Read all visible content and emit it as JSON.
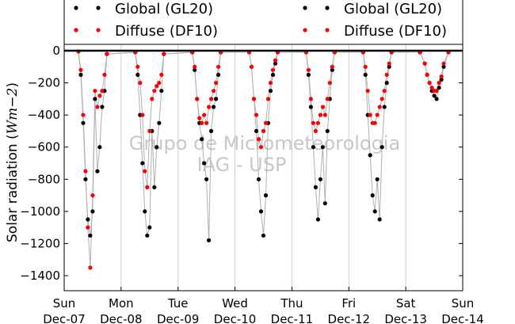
{
  "chart_data": {
    "type": "scatter",
    "ylabel": "Solar radiation (Wm-2)",
    "ylabel_parts": {
      "prefix": "Solar radiation (",
      "unit": "Wm−2",
      "suffix": ")"
    },
    "x_range": [
      "2014-12-07",
      "2014-12-14"
    ],
    "ylim": [
      -1500,
      60
    ],
    "yticks": [
      0,
      -200,
      -400,
      -600,
      -800,
      -1000,
      -1200,
      -1400
    ],
    "xticks": [
      {
        "date": "2014-12-07",
        "day": "Sun",
        "label": "Dec-07"
      },
      {
        "date": "2014-12-08",
        "day": "Mon",
        "label": "Dec-08"
      },
      {
        "date": "2014-12-09",
        "day": "Tue",
        "label": "Dec-09"
      },
      {
        "date": "2014-12-10",
        "day": "Wed",
        "label": "Dec-10"
      },
      {
        "date": "2014-12-11",
        "day": "Thu",
        "label": "Dec-11"
      },
      {
        "date": "2014-12-12",
        "day": "Fri",
        "label": "Dec-12"
      },
      {
        "date": "2014-12-13",
        "day": "Sat",
        "label": "Dec-13"
      },
      {
        "date": "2014-12-14",
        "day": "Sun",
        "label": "Dec-14"
      }
    ],
    "grid": "vertical",
    "legend_position": "top",
    "watermark": [
      "Grupo de Micrometeorologia",
      "IAG - USP"
    ],
    "series": [
      {
        "name": "Global (GL20)",
        "color": "#000000",
        "points": [
          [
            "2014-12-07 06:00",
            -5
          ],
          [
            "2014-12-07 07:00",
            -150
          ],
          [
            "2014-12-07 08:00",
            -450
          ],
          [
            "2014-12-07 09:00",
            -800
          ],
          [
            "2014-12-07 10:00",
            -1050
          ],
          [
            "2014-12-07 11:00",
            -1150
          ],
          [
            "2014-12-07 12:00",
            -1000
          ],
          [
            "2014-12-07 13:00",
            -300
          ],
          [
            "2014-12-07 14:00",
            -750
          ],
          [
            "2014-12-07 15:00",
            -600
          ],
          [
            "2014-12-07 16:00",
            -350
          ],
          [
            "2014-12-07 17:00",
            -250
          ],
          [
            "2014-12-07 18:00",
            -20
          ],
          [
            "2014-12-08 06:00",
            -10
          ],
          [
            "2014-12-08 07:00",
            -150
          ],
          [
            "2014-12-08 08:00",
            -400
          ],
          [
            "2014-12-08 09:00",
            -700
          ],
          [
            "2014-12-08 10:00",
            -1000
          ],
          [
            "2014-12-08 11:00",
            -1150
          ],
          [
            "2014-12-08 12:00",
            -1100
          ],
          [
            "2014-12-08 13:00",
            -500
          ],
          [
            "2014-12-08 14:00",
            -850
          ],
          [
            "2014-12-08 15:00",
            -600
          ],
          [
            "2014-12-08 16:00",
            -450
          ],
          [
            "2014-12-08 17:00",
            -250
          ],
          [
            "2014-12-08 18:00",
            -20
          ],
          [
            "2014-12-09 06:00",
            -10
          ],
          [
            "2014-12-09 07:00",
            -120
          ],
          [
            "2014-12-09 08:00",
            -300
          ],
          [
            "2014-12-09 09:00",
            -450
          ],
          [
            "2014-12-09 10:00",
            -550
          ],
          [
            "2014-12-09 11:00",
            -700
          ],
          [
            "2014-12-09 12:00",
            -800
          ],
          [
            "2014-12-09 13:00",
            -1180
          ],
          [
            "2014-12-09 14:00",
            -500
          ],
          [
            "2014-12-09 15:00",
            -350
          ],
          [
            "2014-12-09 16:00",
            -300
          ],
          [
            "2014-12-09 17:00",
            -150
          ],
          [
            "2014-12-09 18:00",
            -10
          ],
          [
            "2014-12-10 06:00",
            -10
          ],
          [
            "2014-12-10 07:00",
            -100
          ],
          [
            "2014-12-10 08:00",
            -300
          ],
          [
            "2014-12-10 09:00",
            -500
          ],
          [
            "2014-12-10 10:00",
            -800
          ],
          [
            "2014-12-10 11:00",
            -1000
          ],
          [
            "2014-12-10 12:00",
            -1150
          ],
          [
            "2014-12-10 13:00",
            -900
          ],
          [
            "2014-12-10 14:00",
            -450
          ],
          [
            "2014-12-10 15:00",
            -250
          ],
          [
            "2014-12-10 16:00",
            -150
          ],
          [
            "2014-12-10 17:00",
            -80
          ],
          [
            "2014-12-10 18:00",
            -10
          ],
          [
            "2014-12-11 06:00",
            -10
          ],
          [
            "2014-12-11 07:00",
            -150
          ],
          [
            "2014-12-11 08:00",
            -350
          ],
          [
            "2014-12-11 09:00",
            -600
          ],
          [
            "2014-12-11 10:00",
            -850
          ],
          [
            "2014-12-11 11:00",
            -1050
          ],
          [
            "2014-12-11 12:00",
            -800
          ],
          [
            "2014-12-11 13:00",
            -600
          ],
          [
            "2014-12-11 14:00",
            -950
          ],
          [
            "2014-12-11 15:00",
            -500
          ],
          [
            "2014-12-11 16:00",
            -300
          ],
          [
            "2014-12-11 17:00",
            -120
          ],
          [
            "2014-12-11 18:00",
            -10
          ],
          [
            "2014-12-12 06:00",
            -10
          ],
          [
            "2014-12-12 07:00",
            -150
          ],
          [
            "2014-12-12 08:00",
            -400
          ],
          [
            "2014-12-12 09:00",
            -650
          ],
          [
            "2014-12-12 10:00",
            -900
          ],
          [
            "2014-12-12 11:00",
            -1000
          ],
          [
            "2014-12-12 12:00",
            -800
          ],
          [
            "2014-12-12 13:00",
            -1050
          ],
          [
            "2014-12-12 14:00",
            -600
          ],
          [
            "2014-12-12 15:00",
            -350
          ],
          [
            "2014-12-12 16:00",
            -200
          ],
          [
            "2014-12-12 17:00",
            -100
          ],
          [
            "2014-12-12 18:00",
            -10
          ],
          [
            "2014-12-13 06:00",
            -10
          ],
          [
            "2014-12-13 08:00",
            -80
          ],
          [
            "2014-12-13 09:00",
            -150
          ],
          [
            "2014-12-13 10:00",
            -200
          ],
          [
            "2014-12-13 11:00",
            -250
          ],
          [
            "2014-12-13 12:00",
            -280
          ],
          [
            "2014-12-13 13:00",
            -300
          ],
          [
            "2014-12-13 14:00",
            -230
          ],
          [
            "2014-12-13 15:00",
            -180
          ],
          [
            "2014-12-13 16:00",
            -100
          ],
          [
            "2014-12-13 18:00",
            -10
          ]
        ]
      },
      {
        "name": "Diffuse (DF10)",
        "color": "#ff0000",
        "points": [
          [
            "2014-12-07 06:00",
            -5
          ],
          [
            "2014-12-07 07:00",
            -120
          ],
          [
            "2014-12-07 08:00",
            -400
          ],
          [
            "2014-12-07 09:00",
            -750
          ],
          [
            "2014-12-07 10:00",
            -1100
          ],
          [
            "2014-12-07 11:00",
            -1350
          ],
          [
            "2014-12-07 12:00",
            -900
          ],
          [
            "2014-12-07 13:00",
            -250
          ],
          [
            "2014-12-07 14:00",
            -350
          ],
          [
            "2014-12-07 15:00",
            -280
          ],
          [
            "2014-12-07 16:00",
            -250
          ],
          [
            "2014-12-07 17:00",
            -150
          ],
          [
            "2014-12-07 18:00",
            -20
          ],
          [
            "2014-12-08 06:00",
            -10
          ],
          [
            "2014-12-08 07:00",
            -100
          ],
          [
            "2014-12-08 08:00",
            -200
          ],
          [
            "2014-12-08 09:00",
            -400
          ],
          [
            "2014-12-08 10:00",
            -750
          ],
          [
            "2014-12-08 11:00",
            -850
          ],
          [
            "2014-12-08 12:00",
            -500
          ],
          [
            "2014-12-08 13:00",
            -300
          ],
          [
            "2014-12-08 14:00",
            -250
          ],
          [
            "2014-12-08 15:00",
            -220
          ],
          [
            "2014-12-08 16:00",
            -200
          ],
          [
            "2014-12-08 17:00",
            -150
          ],
          [
            "2014-12-08 18:00",
            -20
          ],
          [
            "2014-12-09 06:00",
            -10
          ],
          [
            "2014-12-09 07:00",
            -100
          ],
          [
            "2014-12-09 08:00",
            -300
          ],
          [
            "2014-12-09 09:00",
            -420
          ],
          [
            "2014-12-09 10:00",
            -450
          ],
          [
            "2014-12-09 11:00",
            -400
          ],
          [
            "2014-12-09 12:00",
            -450
          ],
          [
            "2014-12-09 13:00",
            -350
          ],
          [
            "2014-12-09 14:00",
            -300
          ],
          [
            "2014-12-09 15:00",
            -250
          ],
          [
            "2014-12-09 16:00",
            -200
          ],
          [
            "2014-12-09 17:00",
            -100
          ],
          [
            "2014-12-09 18:00",
            -10
          ],
          [
            "2014-12-10 06:00",
            -10
          ],
          [
            "2014-12-10 07:00",
            -100
          ],
          [
            "2014-12-10 08:00",
            -300
          ],
          [
            "2014-12-10 09:00",
            -400
          ],
          [
            "2014-12-10 10:00",
            -550
          ],
          [
            "2014-12-10 11:00",
            -600
          ],
          [
            "2014-12-10 12:00",
            -500
          ],
          [
            "2014-12-10 13:00",
            -450
          ],
          [
            "2014-12-10 14:00",
            -300
          ],
          [
            "2014-12-10 15:00",
            -200
          ],
          [
            "2014-12-10 16:00",
            -120
          ],
          [
            "2014-12-10 17:00",
            -60
          ],
          [
            "2014-12-10 18:00",
            -10
          ],
          [
            "2014-12-11 06:00",
            -10
          ],
          [
            "2014-12-11 07:00",
            -120
          ],
          [
            "2014-12-11 08:00",
            -300
          ],
          [
            "2014-12-11 09:00",
            -450
          ],
          [
            "2014-12-11 10:00",
            -500
          ],
          [
            "2014-12-11 11:00",
            -450
          ],
          [
            "2014-12-11 12:00",
            -400
          ],
          [
            "2014-12-11 13:00",
            -350
          ],
          [
            "2014-12-11 14:00",
            -400
          ],
          [
            "2014-12-11 15:00",
            -300
          ],
          [
            "2014-12-11 16:00",
            -200
          ],
          [
            "2014-12-11 17:00",
            -100
          ],
          [
            "2014-12-11 18:00",
            -10
          ],
          [
            "2014-12-12 06:00",
            -10
          ],
          [
            "2014-12-12 07:00",
            -100
          ],
          [
            "2014-12-12 08:00",
            -250
          ],
          [
            "2014-12-12 09:00",
            -400
          ],
          [
            "2014-12-12 10:00",
            -450
          ],
          [
            "2014-12-12 11:00",
            -450
          ],
          [
            "2014-12-12 12:00",
            -400
          ],
          [
            "2014-12-12 13:00",
            -350
          ],
          [
            "2014-12-12 14:00",
            -300
          ],
          [
            "2014-12-12 15:00",
            -250
          ],
          [
            "2014-12-12 16:00",
            -150
          ],
          [
            "2014-12-12 17:00",
            -80
          ],
          [
            "2014-12-12 18:00",
            -10
          ],
          [
            "2014-12-13 06:00",
            -10
          ],
          [
            "2014-12-13 08:00",
            -80
          ],
          [
            "2014-12-13 09:00",
            -150
          ],
          [
            "2014-12-13 10:00",
            -200
          ],
          [
            "2014-12-13 11:00",
            -230
          ],
          [
            "2014-12-13 12:00",
            -250
          ],
          [
            "2014-12-13 13:00",
            -250
          ],
          [
            "2014-12-13 14:00",
            -200
          ],
          [
            "2014-12-13 15:00",
            -160
          ],
          [
            "2014-12-13 16:00",
            -80
          ],
          [
            "2014-12-13 18:00",
            -10
          ]
        ]
      }
    ]
  }
}
